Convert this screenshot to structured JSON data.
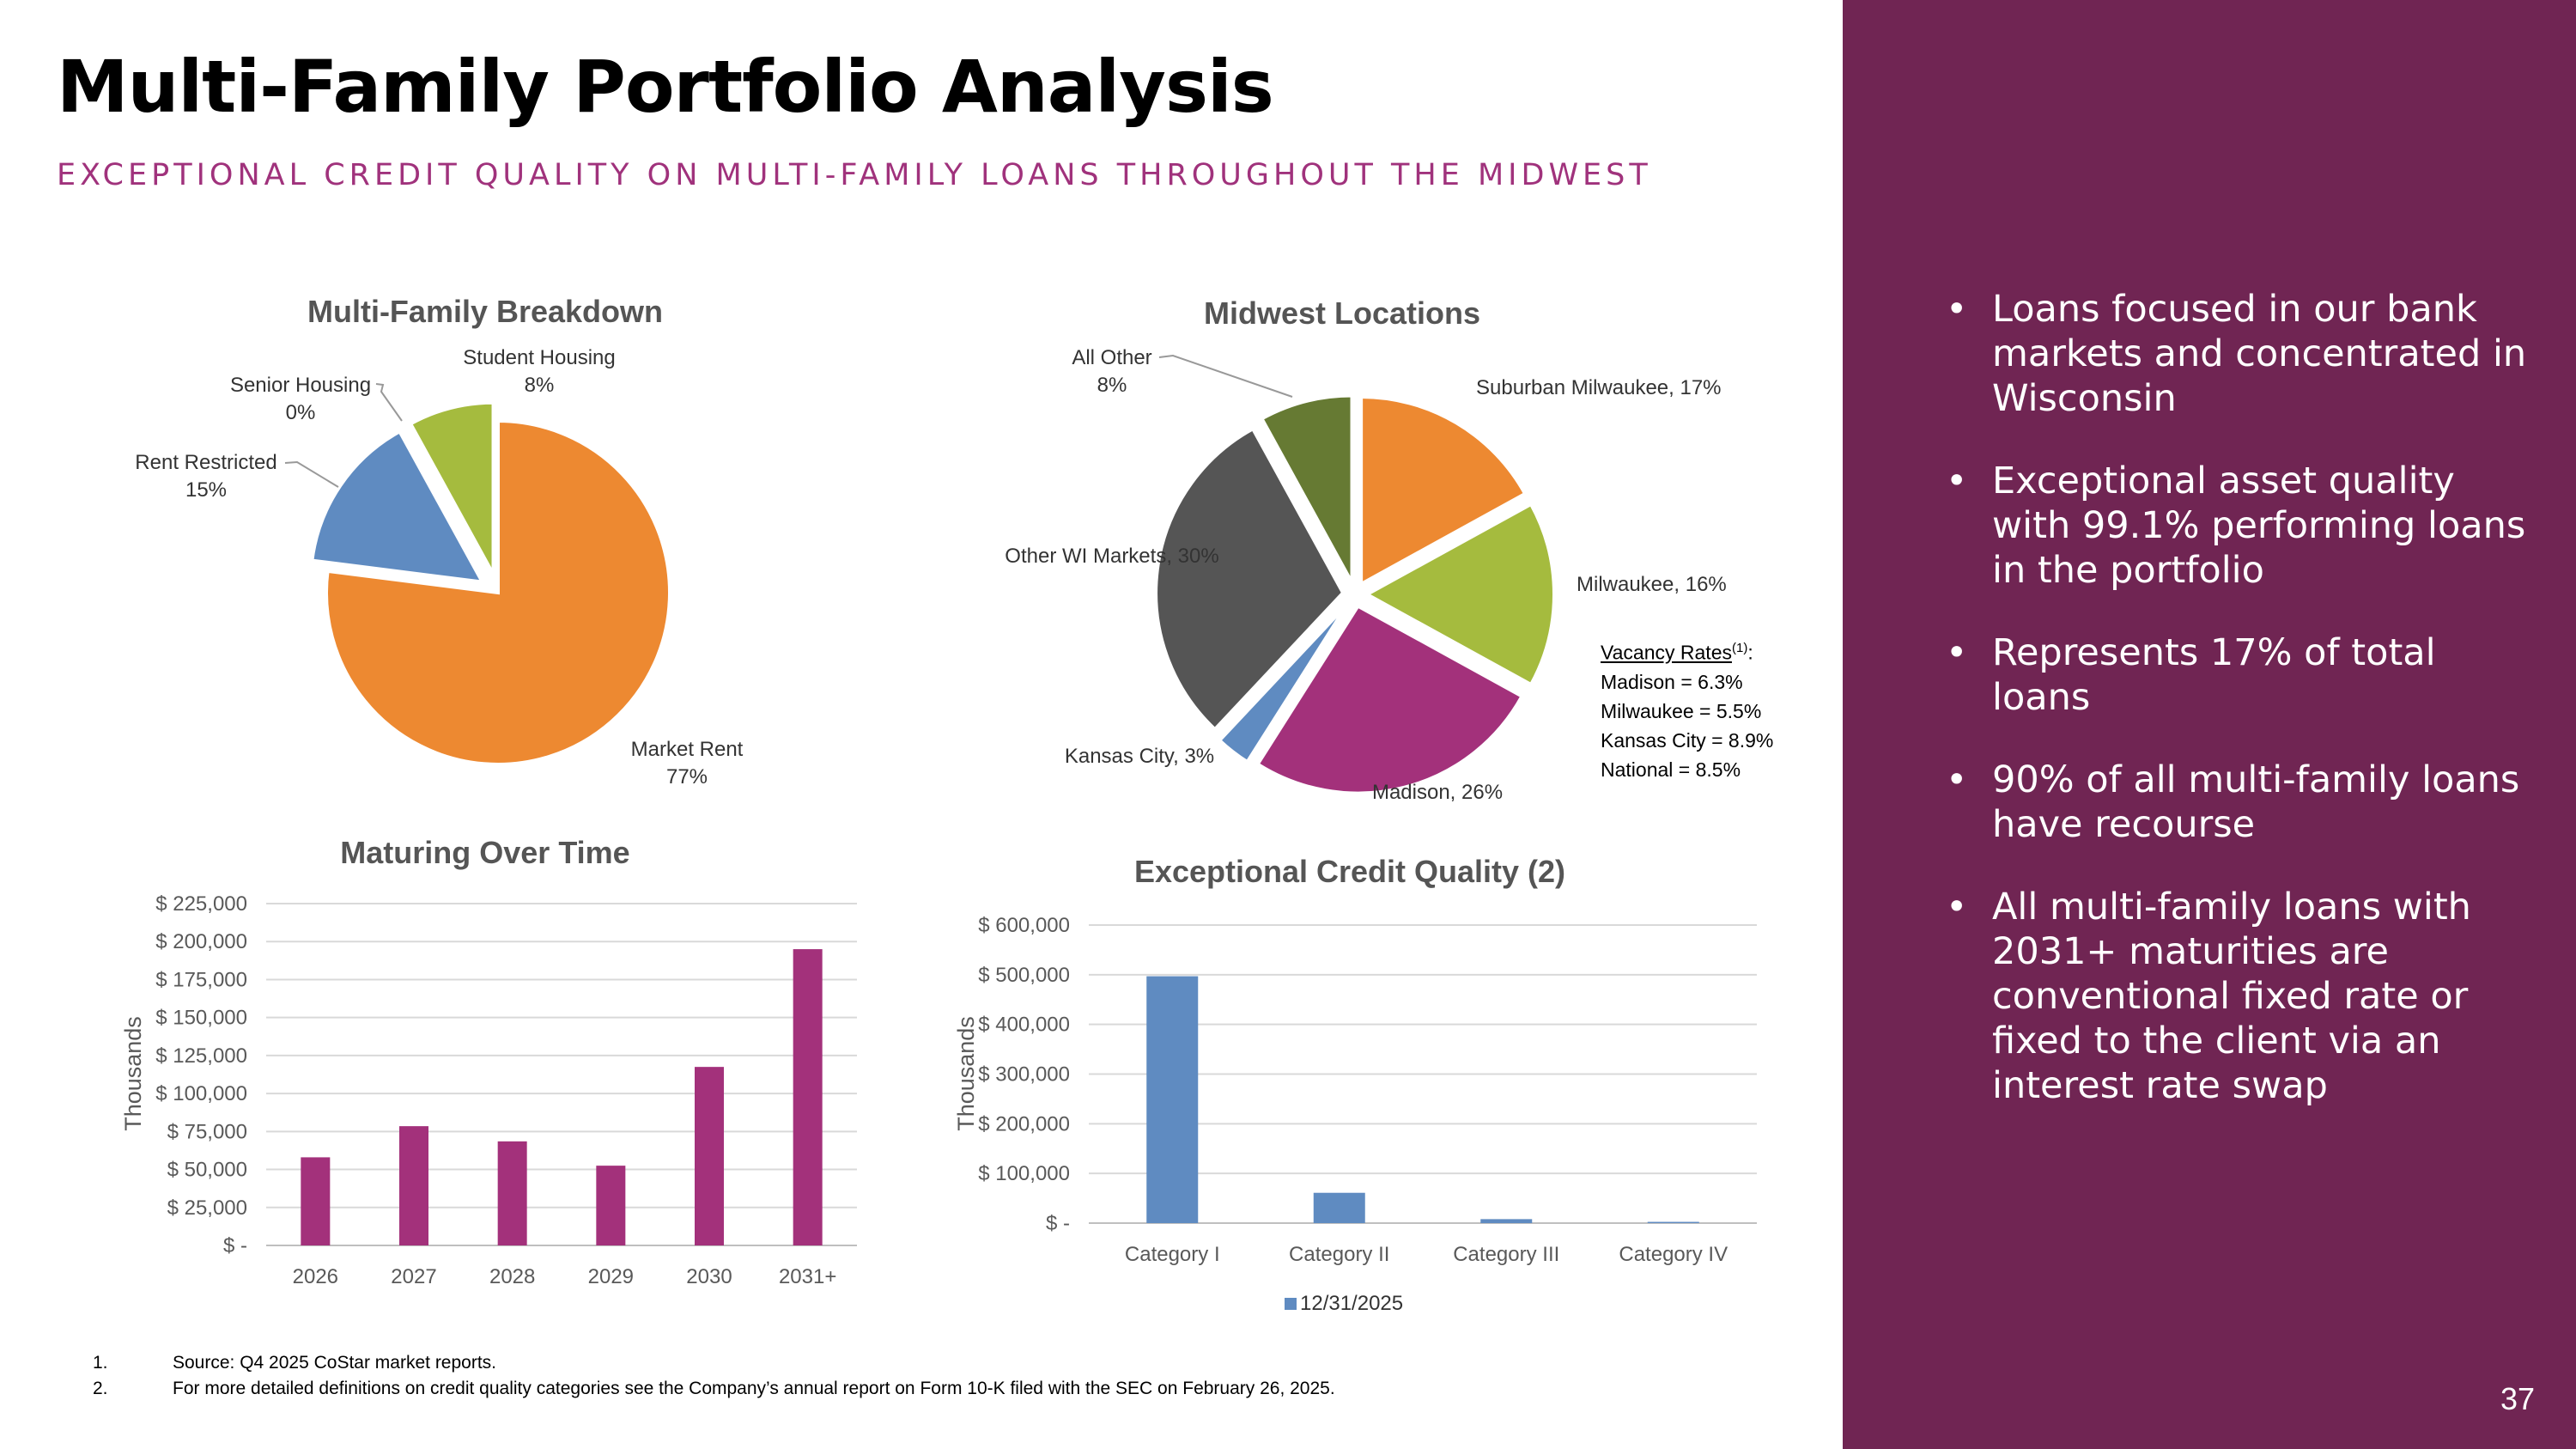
{
  "header": {
    "title": "Multi-Family Portfolio Analysis",
    "subtitle": "EXCEPTIONAL CREDIT QUALITY ON MULTI-FAMILY LOANS THROUGHOUT THE MIDWEST"
  },
  "sidebar": {
    "bullets": [
      "Loans focused in our bank markets and concentrated in Wisconsin",
      "Exceptional asset quality with 99.1% performing loans in the portfolio",
      "Represents 17% of total loans",
      "90% of all multi-family loans have recourse",
      "All multi-family loans with 2031+ maturities are conventional fixed rate or fixed to the client via an interest rate swap"
    ],
    "page_number": "37"
  },
  "vacancy": {
    "heading": "Vacancy Rates",
    "footnote_ref": "(1)",
    "colon": ":",
    "lines": [
      "Madison = 6.3%",
      "Milwaukee = 5.5%",
      "Kansas City = 8.9%",
      "National = 8.5%"
    ]
  },
  "footnotes": [
    {
      "num": "1.",
      "text": "Source: Q4 2025 CoStar market reports."
    },
    {
      "num": "2.",
      "text": "For more detailed definitions on credit quality categories see the  Company’s annual report on Form 10-K filed with the SEC on February 26, 2025."
    }
  ],
  "chart_data": [
    {
      "type": "pie",
      "title": "Multi-Family Breakdown",
      "slices": [
        {
          "name": "Market Rent",
          "label": "Market Rent",
          "pct_label": "77%",
          "value": 77,
          "color": "#ed8931"
        },
        {
          "name": "Rent Restricted",
          "label": "Rent Restricted",
          "pct_label": "15%",
          "value": 15,
          "color": "#5f8bc1"
        },
        {
          "name": "Senior Housing",
          "label": "Senior Housing",
          "pct_label": "0%",
          "value": 0,
          "color": "#8faadc"
        },
        {
          "name": "Student Housing",
          "label": "Student Housing",
          "pct_label": "8%",
          "value": 8,
          "color": "#a5bb3e"
        }
      ]
    },
    {
      "type": "pie",
      "title": "Midwest Locations",
      "slices": [
        {
          "name": "Suburban Milwaukee",
          "label": "Suburban Milwaukee, 17%",
          "value": 17,
          "color": "#ed8931"
        },
        {
          "name": "Milwaukee",
          "label": "Milwaukee, 16%",
          "value": 16,
          "color": "#a5bb3e"
        },
        {
          "name": "Madison",
          "label": "Madison, 26%",
          "value": 26,
          "color": "#a3317b"
        },
        {
          "name": "Kansas City",
          "label": "Kansas City, 3%",
          "value": 3,
          "color": "#5f8bc1"
        },
        {
          "name": "Other WI Markets",
          "label": "Other WI Markets, 30%",
          "value": 30,
          "color": "#555555"
        },
        {
          "name": "All Other",
          "label": "All Other",
          "pct_label": "8%",
          "value": 8,
          "color": "#667a33"
        }
      ]
    },
    {
      "type": "bar",
      "title": "Maturing Over Time",
      "ylabel": "Thousands",
      "categories": [
        "2026",
        "2027",
        "2028",
        "2029",
        "2030",
        "2031+"
      ],
      "values": [
        58000,
        78500,
        68500,
        52500,
        117500,
        195000
      ],
      "ylim": [
        0,
        225000
      ],
      "yticks": [
        0,
        25000,
        50000,
        75000,
        100000,
        125000,
        150000,
        175000,
        200000,
        225000
      ],
      "ytick_labels": [
        "$ -",
        "$ 25,000",
        "$ 50,000",
        "$ 75,000",
        "$ 100,000",
        "$ 125,000",
        "$ 150,000",
        "$ 175,000",
        "$ 200,000",
        "$ 225,000"
      ],
      "color": "#a3317b"
    },
    {
      "type": "bar",
      "title": "Exceptional Credit Quality (2)",
      "ylabel": "Thousands",
      "categories": [
        "Category I",
        "Category II",
        "Category III",
        "Category IV"
      ],
      "values": [
        497000,
        61000,
        8000,
        2500
      ],
      "ylim": [
        0,
        600000
      ],
      "yticks": [
        0,
        100000,
        200000,
        300000,
        400000,
        500000,
        600000
      ],
      "ytick_labels": [
        "$ -",
        "$ 100,000",
        "$ 200,000",
        "$ 300,000",
        "$ 400,000",
        "$ 500,000",
        "$ 600,000"
      ],
      "legend": "12/31/2025",
      "color": "#5f8bc1"
    }
  ]
}
